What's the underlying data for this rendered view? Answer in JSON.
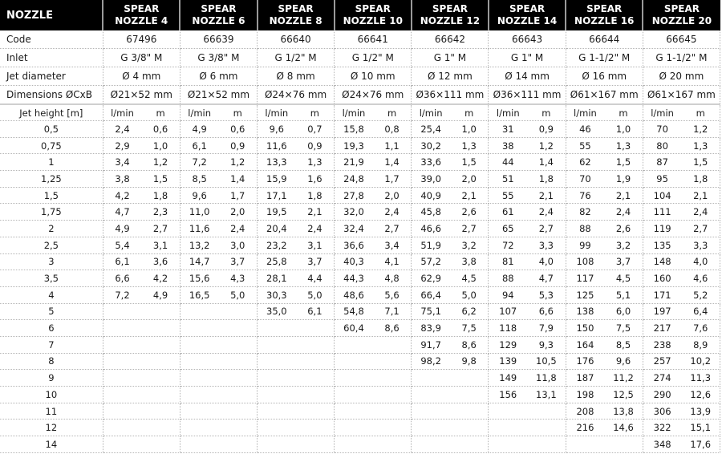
{
  "header": {
    "first": "NOZZLE",
    "nozzles": [
      "SPEAR NOZZLE 4",
      "SPEAR NOZZLE 6",
      "SPEAR NOZZLE 8",
      "SPEAR NOZZLE 10",
      "SPEAR NOZZLE 12",
      "SPEAR NOZZLE 14",
      "SPEAR NOZZLE 16",
      "SPEAR NOZZLE 20"
    ]
  },
  "specs": [
    {
      "label": "Code",
      "values": [
        "67496",
        "66639",
        "66640",
        "66641",
        "66642",
        "66643",
        "66644",
        "66645"
      ]
    },
    {
      "label": "Inlet",
      "values": [
        "G 3/8\" M",
        "G 3/8\" M",
        "G 1/2\" M",
        "G 1/2\" M",
        "G 1\" M",
        "G 1\" M",
        "G 1-1/2\" M",
        "G 1-1/2\" M"
      ]
    },
    {
      "label": "Jet diameter",
      "values": [
        "Ø 4 mm",
        "Ø 6 mm",
        "Ø 8 mm",
        "Ø 10 mm",
        "Ø 12 mm",
        "Ø 14 mm",
        "Ø 16 mm",
        "Ø 20 mm"
      ]
    },
    {
      "label": "Dimensions ØCxB",
      "values": [
        "Ø21×52 mm",
        "Ø21×52 mm",
        "Ø24×76 mm",
        "Ø24×76 mm",
        "Ø36×111 mm",
        "Ø36×111 mm",
        "Ø61×167 mm",
        "Ø61×167 mm"
      ]
    }
  ],
  "units": {
    "label": "Jet height [m]",
    "flow": "l/min",
    "distance": "m"
  },
  "rows": [
    {
      "h": "0,5",
      "v": [
        [
          "2,4",
          "0,6"
        ],
        [
          "4,9",
          "0,6"
        ],
        [
          "9,6",
          "0,7"
        ],
        [
          "15,8",
          "0,8"
        ],
        [
          "25,4",
          "1,0"
        ],
        [
          "31",
          "0,9"
        ],
        [
          "46",
          "1,0"
        ],
        [
          "70",
          "1,2"
        ]
      ]
    },
    {
      "h": "0,75",
      "v": [
        [
          "2,9",
          "1,0"
        ],
        [
          "6,1",
          "0,9"
        ],
        [
          "11,6",
          "0,9"
        ],
        [
          "19,3",
          "1,1"
        ],
        [
          "30,2",
          "1,3"
        ],
        [
          "38",
          "1,2"
        ],
        [
          "55",
          "1,3"
        ],
        [
          "80",
          "1,3"
        ]
      ]
    },
    {
      "h": "1",
      "v": [
        [
          "3,4",
          "1,2"
        ],
        [
          "7,2",
          "1,2"
        ],
        [
          "13,3",
          "1,3"
        ],
        [
          "21,9",
          "1,4"
        ],
        [
          "33,6",
          "1,5"
        ],
        [
          "44",
          "1,4"
        ],
        [
          "62",
          "1,5"
        ],
        [
          "87",
          "1,5"
        ]
      ]
    },
    {
      "h": "1,25",
      "v": [
        [
          "3,8",
          "1,5"
        ],
        [
          "8,5",
          "1,4"
        ],
        [
          "15,9",
          "1,6"
        ],
        [
          "24,8",
          "1,7"
        ],
        [
          "39,0",
          "2,0"
        ],
        [
          "51",
          "1,8"
        ],
        [
          "70",
          "1,9"
        ],
        [
          "95",
          "1,8"
        ]
      ]
    },
    {
      "h": "1,5",
      "v": [
        [
          "4,2",
          "1,8"
        ],
        [
          "9,6",
          "1,7"
        ],
        [
          "17,1",
          "1,8"
        ],
        [
          "27,8",
          "2,0"
        ],
        [
          "40,9",
          "2,1"
        ],
        [
          "55",
          "2,1"
        ],
        [
          "76",
          "2,1"
        ],
        [
          "104",
          "2,1"
        ]
      ]
    },
    {
      "h": "1,75",
      "v": [
        [
          "4,7",
          "2,3"
        ],
        [
          "11,0",
          "2,0"
        ],
        [
          "19,5",
          "2,1"
        ],
        [
          "32,0",
          "2,4"
        ],
        [
          "45,8",
          "2,6"
        ],
        [
          "61",
          "2,4"
        ],
        [
          "82",
          "2,4"
        ],
        [
          "111",
          "2,4"
        ]
      ]
    },
    {
      "h": "2",
      "v": [
        [
          "4,9",
          "2,7"
        ],
        [
          "11,6",
          "2,4"
        ],
        [
          "20,4",
          "2,4"
        ],
        [
          "32,4",
          "2,7"
        ],
        [
          "46,6",
          "2,7"
        ],
        [
          "65",
          "2,7"
        ],
        [
          "88",
          "2,6"
        ],
        [
          "119",
          "2,7"
        ]
      ]
    },
    {
      "h": "2,5",
      "v": [
        [
          "5,4",
          "3,1"
        ],
        [
          "13,2",
          "3,0"
        ],
        [
          "23,2",
          "3,1"
        ],
        [
          "36,6",
          "3,4"
        ],
        [
          "51,9",
          "3,2"
        ],
        [
          "72",
          "3,3"
        ],
        [
          "99",
          "3,2"
        ],
        [
          "135",
          "3,3"
        ]
      ]
    },
    {
      "h": "3",
      "v": [
        [
          "6,1",
          "3,6"
        ],
        [
          "14,7",
          "3,7"
        ],
        [
          "25,8",
          "3,7"
        ],
        [
          "40,3",
          "4,1"
        ],
        [
          "57,2",
          "3,8"
        ],
        [
          "81",
          "4,0"
        ],
        [
          "108",
          "3,7"
        ],
        [
          "148",
          "4,0"
        ]
      ]
    },
    {
      "h": "3,5",
      "v": [
        [
          "6,6",
          "4,2"
        ],
        [
          "15,6",
          "4,3"
        ],
        [
          "28,1",
          "4,4"
        ],
        [
          "44,3",
          "4,8"
        ],
        [
          "62,9",
          "4,5"
        ],
        [
          "88",
          "4,7"
        ],
        [
          "117",
          "4,5"
        ],
        [
          "160",
          "4,6"
        ]
      ]
    },
    {
      "h": "4",
      "v": [
        [
          "7,2",
          "4,9"
        ],
        [
          "16,5",
          "5,0"
        ],
        [
          "30,3",
          "5,0"
        ],
        [
          "48,6",
          "5,6"
        ],
        [
          "66,4",
          "5,0"
        ],
        [
          "94",
          "5,3"
        ],
        [
          "125",
          "5,1"
        ],
        [
          "171",
          "5,2"
        ]
      ]
    },
    {
      "h": "5",
      "v": [
        null,
        null,
        [
          "35,0",
          "6,1"
        ],
        [
          "54,8",
          "7,1"
        ],
        [
          "75,1",
          "6,2"
        ],
        [
          "107",
          "6,6"
        ],
        [
          "138",
          "6,0"
        ],
        [
          "197",
          "6,4"
        ]
      ]
    },
    {
      "h": "6",
      "v": [
        null,
        null,
        null,
        [
          "60,4",
          "8,6"
        ],
        [
          "83,9",
          "7,5"
        ],
        [
          "118",
          "7,9"
        ],
        [
          "150",
          "7,5"
        ],
        [
          "217",
          "7,6"
        ]
      ]
    },
    {
      "h": "7",
      "v": [
        null,
        null,
        null,
        null,
        [
          "91,7",
          "8,6"
        ],
        [
          "129",
          "9,3"
        ],
        [
          "164",
          "8,5"
        ],
        [
          "238",
          "8,9"
        ]
      ]
    },
    {
      "h": "8",
      "v": [
        null,
        null,
        null,
        null,
        [
          "98,2",
          "9,8"
        ],
        [
          "139",
          "10,5"
        ],
        [
          "176",
          "9,6"
        ],
        [
          "257",
          "10,2"
        ]
      ]
    },
    {
      "h": "9",
      "v": [
        null,
        null,
        null,
        null,
        null,
        [
          "149",
          "11,8"
        ],
        [
          "187",
          "11,2"
        ],
        [
          "274",
          "11,3"
        ]
      ]
    },
    {
      "h": "10",
      "v": [
        null,
        null,
        null,
        null,
        null,
        [
          "156",
          "13,1"
        ],
        [
          "198",
          "12,5"
        ],
        [
          "290",
          "12,6"
        ]
      ]
    },
    {
      "h": "11",
      "v": [
        null,
        null,
        null,
        null,
        null,
        null,
        [
          "208",
          "13,8"
        ],
        [
          "306",
          "13,9"
        ]
      ]
    },
    {
      "h": "12",
      "v": [
        null,
        null,
        null,
        null,
        null,
        null,
        [
          "216",
          "14,6"
        ],
        [
          "322",
          "15,1"
        ]
      ]
    },
    {
      "h": "14",
      "v": [
        null,
        null,
        null,
        null,
        null,
        null,
        null,
        [
          "348",
          "17,6"
        ]
      ]
    }
  ]
}
